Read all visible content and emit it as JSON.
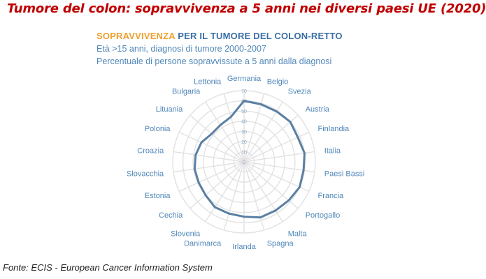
{
  "title": "Tumore del colon: sopravvivenza a 5 anni nei diversi paesi UE (2020)",
  "chart_title": {
    "highlight": "SOPRAVVIVENZA",
    "rest": " PER IL TUMORE DEL COLON-RETTO"
  },
  "subtitle_1": "Età >15 anni, diagnosi di tumore 2000-2007",
  "subtitle_2": "Percentuale di persone sopravvissute a 5 anni dalla diagnosi",
  "source": "Fonte: ECIS - European Cancer Information System",
  "colors": {
    "title": "#c00000",
    "highlight": "#f0a030",
    "accent": "#3b6fa5",
    "label": "#4f86b8",
    "series": "#5a7fa3",
    "grid": "#e2e2e2"
  },
  "chart_data": {
    "type": "radar",
    "categories": [
      "Germania",
      "Belgio",
      "Svezia",
      "Austria",
      "Finlandia",
      "Italia",
      "Paesi Bassi",
      "Francia",
      "Portogallo",
      "Malta",
      "Spagna",
      "Irlanda",
      "Danimarca",
      "Slovenia",
      "Cechia",
      "Estonia",
      "Slovacchia",
      "Croazia",
      "Polonia",
      "Lituania",
      "Bulgaria",
      "Lettonia"
    ],
    "series": [
      {
        "values": [
          60,
          59,
          59,
          60,
          58,
          60,
          59,
          60,
          58,
          57,
          57,
          54,
          53,
          53,
          50,
          49,
          49,
          48,
          46,
          42,
          43,
          46
        ]
      }
    ],
    "rlim": [
      0,
      70
    ],
    "r_ticks": [
      0,
      10,
      20,
      30,
      40,
      50,
      60,
      70
    ],
    "grid": true,
    "legend": "none"
  }
}
